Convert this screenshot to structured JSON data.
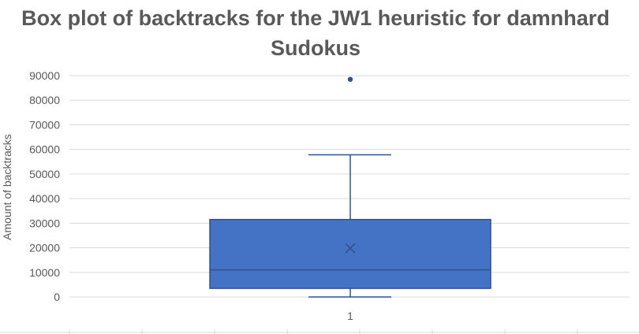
{
  "chart_data": {
    "type": "box",
    "title_lines": [
      "Box plot of backtracks for the JW1 heuristic for damnhard",
      "Sudokus"
    ],
    "xlabel": "",
    "ylabel": "Amount of backtracks",
    "categories": [
      "1"
    ],
    "ylim": [
      0,
      90000
    ],
    "y_ticks": [
      "0",
      "10000",
      "20000",
      "30000",
      "40000",
      "50000",
      "60000",
      "70000",
      "80000",
      "90000"
    ],
    "grid": true,
    "legend": "none",
    "box": {
      "min": 0,
      "q1": 3500,
      "median": 11000,
      "q3": 31500,
      "max": 57800,
      "mean": 19800,
      "outliers": [
        88500
      ]
    },
    "colors": {
      "box_fill": "#4472c4",
      "box_edge": "#2f528f",
      "grid": "#d9d9d9",
      "text": "#595959"
    }
  }
}
